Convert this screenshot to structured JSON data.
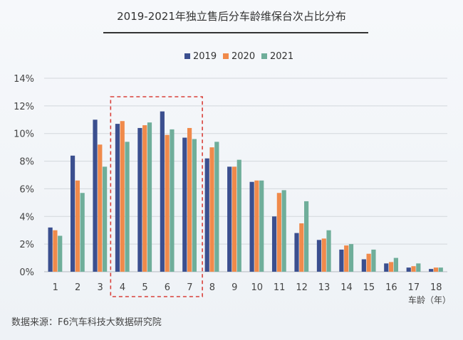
{
  "chart_data": {
    "type": "bar",
    "title": "2019-2021年独立售后分车龄维保台次占比分布",
    "xlabel": "车龄（年）",
    "ylabel": "",
    "categories": [
      "1",
      "2",
      "3",
      "4",
      "5",
      "6",
      "7",
      "8",
      "9",
      "10",
      "11",
      "12",
      "13",
      "14",
      "15",
      "16",
      "17",
      "18"
    ],
    "ylim": [
      0,
      14
    ],
    "yticks": [
      0,
      2,
      4,
      6,
      8,
      10,
      12,
      14
    ],
    "ytick_labels": [
      "0%",
      "2%",
      "4%",
      "6%",
      "8%",
      "10%",
      "12%",
      "14%"
    ],
    "grid": true,
    "legend_position": "top-center",
    "highlight_categories": [
      "4",
      "7"
    ],
    "series": [
      {
        "name": "2019",
        "color": "#3b4f8f",
        "values": [
          3.2,
          8.4,
          11.0,
          10.7,
          10.4,
          11.6,
          9.7,
          8.2,
          7.6,
          6.5,
          4.0,
          2.8,
          2.3,
          1.6,
          0.9,
          0.6,
          0.3,
          0.2
        ]
      },
      {
        "name": "2020",
        "color": "#f08a4b",
        "values": [
          3.0,
          6.6,
          9.2,
          10.9,
          10.6,
          9.9,
          10.4,
          9.0,
          7.6,
          6.6,
          5.7,
          3.5,
          2.4,
          1.9,
          1.3,
          0.7,
          0.4,
          0.3
        ]
      },
      {
        "name": "2021",
        "color": "#6fae9a",
        "values": [
          2.6,
          5.7,
          7.6,
          9.4,
          10.8,
          10.3,
          9.6,
          9.4,
          8.1,
          6.6,
          5.9,
          5.1,
          3.0,
          2.0,
          1.6,
          1.0,
          0.6,
          0.3
        ]
      }
    ]
  },
  "source_text": "数据来源：F6汽车科技大数据研究院"
}
